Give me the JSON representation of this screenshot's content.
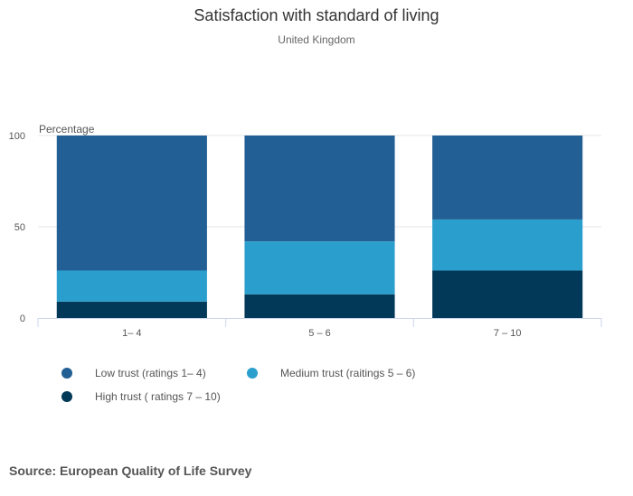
{
  "chart_data": {
    "type": "bar",
    "stacked": true,
    "title": "Satisfaction with standard of living",
    "subtitle": "United Kingdom",
    "ylabel": "Percentage",
    "xlabel": "",
    "ylim": [
      0,
      100
    ],
    "yticks": [
      0,
      50,
      100
    ],
    "categories": [
      "1– 4",
      "5 – 6",
      "7 – 10"
    ],
    "series": [
      {
        "name": "High trust ( ratings 7 – 10)",
        "color": "#023858",
        "values": [
          9,
          13,
          26
        ]
      },
      {
        "name": "Medium trust (raitings 5 – 6)",
        "color": "#2a9fcd",
        "values": [
          17,
          29,
          28
        ]
      },
      {
        "name": "Low trust (ratings 1– 4)",
        "color": "#225f95",
        "values": [
          74,
          58,
          46
        ]
      }
    ],
    "legend": [
      {
        "name": "Low trust (ratings 1– 4)",
        "color": "#225f95"
      },
      {
        "name": "Medium trust (raitings 5 – 6)",
        "color": "#2a9fcd"
      },
      {
        "name": "High trust ( ratings 7 – 10)",
        "color": "#023858"
      }
    ],
    "legend_position": "bottom-left",
    "grid": true
  },
  "source": "Source: European Quality of Life Survey"
}
